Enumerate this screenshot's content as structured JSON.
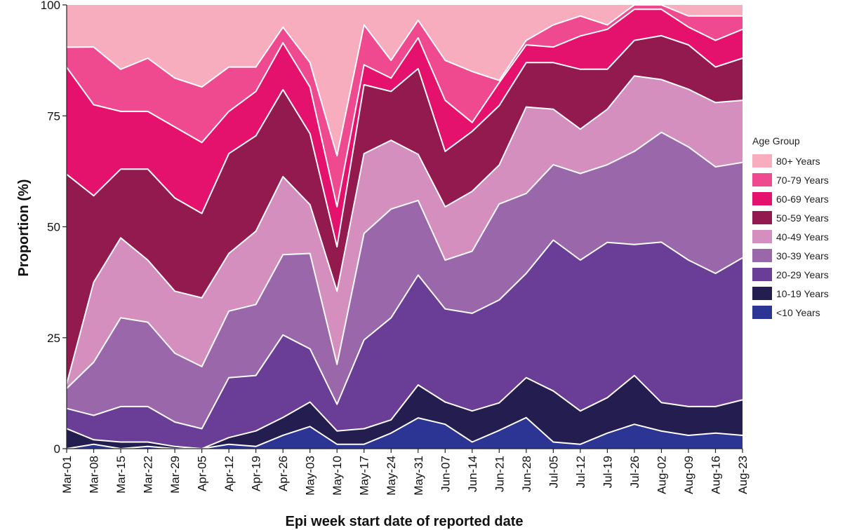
{
  "chart_data": {
    "type": "area",
    "stacked": true,
    "normalized": true,
    "xlabel": "Epi week start date of reported date",
    "ylabel": "Proportion (%)",
    "ylim": [
      0,
      100
    ],
    "yticks": [
      "0",
      "25",
      "50",
      "75",
      "100"
    ],
    "yticks_values": [
      0,
      25,
      50,
      75,
      100
    ],
    "grid": false,
    "legend_title": "Age Group",
    "legend_position": "right",
    "categories": [
      "Mar-01",
      "Mar-08",
      "Mar-15",
      "Mar-22",
      "Mar-29",
      "Apr-05",
      "Apr-12",
      "Apr-19",
      "Apr-26",
      "May-03",
      "May-10",
      "May-17",
      "May-24",
      "May-31",
      "Jun-07",
      "Jun-14",
      "Jun-21",
      "Jun-28",
      "Jul-05",
      "Jul-12",
      "Jul-19",
      "Jul-26",
      "Aug-02",
      "Aug-09",
      "Aug-16",
      "Aug-23"
    ],
    "series": [
      {
        "name": "<10 Years",
        "color": "#2c3593",
        "values": [
          0.0,
          1.0,
          0.0,
          0.5,
          0.0,
          0.0,
          1.0,
          0.5,
          3.0,
          5.0,
          1.0,
          1.0,
          3.5,
          7.0,
          5.5,
          1.5,
          4.0,
          7.0,
          1.5,
          1.0,
          3.5,
          5.5,
          4.0,
          3.0,
          3.5,
          3.0
        ]
      },
      {
        "name": "10-19 Years",
        "color": "#241d4f",
        "values": [
          4.5,
          1.0,
          1.5,
          1.0,
          0.5,
          0.0,
          1.5,
          3.5,
          4.0,
          5.5,
          3.0,
          3.5,
          3.0,
          7.5,
          5.0,
          7.0,
          6.0,
          9.0,
          11.5,
          7.5,
          8.0,
          11.0,
          6.5,
          6.5,
          6.0,
          8.0
        ]
      },
      {
        "name": "20-29 Years",
        "color": "#6a3d96",
        "values": [
          4.5,
          5.5,
          8.0,
          8.0,
          5.5,
          4.5,
          13.5,
          12.5,
          18.5,
          12.0,
          6.0,
          20.0,
          23.0,
          25.0,
          21.0,
          22.0,
          22.5,
          23.5,
          34.0,
          34.0,
          35.0,
          29.5,
          36.5,
          33.0,
          30.0,
          32.0
        ]
      },
      {
        "name": "30-39 Years",
        "color": "#9a67ab",
        "values": [
          4.5,
          12.0,
          20.0,
          19.0,
          15.5,
          14.0,
          15.0,
          16.0,
          18.0,
          21.5,
          9.0,
          24.0,
          24.5,
          17.0,
          11.0,
          14.0,
          21.0,
          18.0,
          17.0,
          19.5,
          17.5,
          21.0,
          25.0,
          25.5,
          24.0,
          21.5
        ]
      },
      {
        "name": "40-49 Years",
        "color": "#d48fbf",
        "values": [
          1.0,
          18.0,
          18.0,
          14.0,
          14.0,
          15.5,
          13.0,
          16.5,
          17.5,
          11.0,
          16.5,
          18.0,
          15.5,
          10.5,
          12.0,
          13.5,
          8.5,
          19.5,
          12.5,
          10.0,
          12.5,
          17.0,
          12.0,
          13.0,
          14.5,
          14.0
        ]
      },
      {
        "name": "50-59 Years",
        "color": "#931a4e",
        "values": [
          47.0,
          19.5,
          15.5,
          20.5,
          21.0,
          19.0,
          22.5,
          21.5,
          19.5,
          16.0,
          10.0,
          15.5,
          11.0,
          19.5,
          12.5,
          13.5,
          13.0,
          10.0,
          10.5,
          13.5,
          9.0,
          8.0,
          10.0,
          10.0,
          8.0,
          9.5
        ]
      },
      {
        "name": "60-69 Years",
        "color": "#e5126d",
        "values": [
          24.0,
          20.5,
          13.0,
          13.0,
          16.0,
          16.0,
          9.5,
          10.0,
          10.5,
          10.5,
          9.0,
          4.5,
          3.0,
          7.0,
          11.5,
          2.0,
          5.0,
          4.0,
          3.5,
          7.5,
          9.0,
          7.0,
          6.0,
          4.0,
          6.0,
          6.5
        ]
      },
      {
        "name": "70-79 Years",
        "color": "#ef4a8f",
        "values": [
          4.5,
          13.0,
          9.5,
          12.0,
          11.0,
          12.5,
          10.0,
          5.5,
          3.5,
          5.5,
          11.5,
          9.0,
          4.0,
          4.0,
          9.0,
          11.5,
          0.5,
          1.0,
          5.0,
          4.5,
          1.0,
          1.0,
          1.0,
          2.5,
          5.5,
          3.0
        ]
      },
      {
        "name": "80+ Years",
        "color": "#f7adbe",
        "values": [
          9.5,
          9.5,
          14.5,
          12.0,
          16.5,
          18.5,
          14.0,
          14.0,
          5.0,
          13.0,
          34.0,
          4.5,
          12.5,
          3.5,
          12.5,
          15.0,
          16.5,
          8.0,
          4.5,
          2.5,
          4.5,
          0.0,
          0.0,
          2.5,
          2.5,
          2.5
        ]
      }
    ]
  }
}
